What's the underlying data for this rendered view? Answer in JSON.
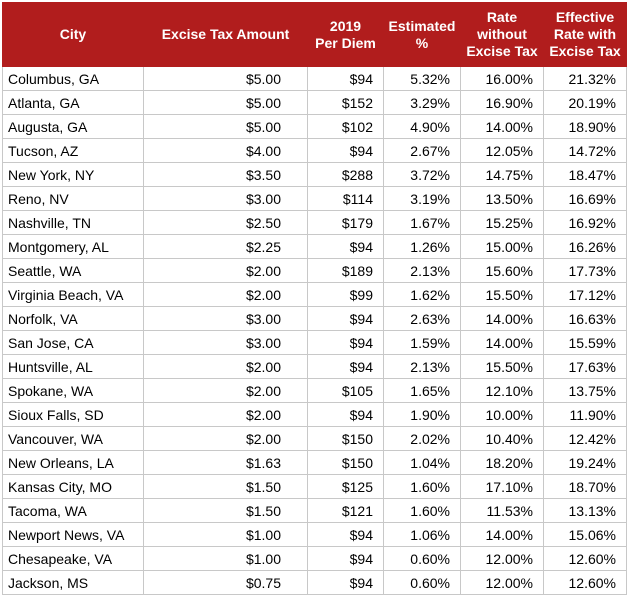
{
  "headers": [
    "City",
    "Excise Tax Amount",
    "2019\nPer Diem",
    "Estimated\n%",
    "Rate\nwithout\nExcise Tax",
    "Effective\nRate with\nExcise Tax"
  ],
  "rows": [
    [
      "Columbus, GA",
      "$5.00",
      "$94",
      "5.32%",
      "16.00%",
      "21.32%"
    ],
    [
      "Atlanta, GA",
      "$5.00",
      "$152",
      "3.29%",
      "16.90%",
      "20.19%"
    ],
    [
      "Augusta, GA",
      "$5.00",
      "$102",
      "4.90%",
      "14.00%",
      "18.90%"
    ],
    [
      "Tucson, AZ",
      "$4.00",
      "$94",
      "2.67%",
      "12.05%",
      "14.72%"
    ],
    [
      "New York, NY",
      "$3.50",
      "$288",
      "3.72%",
      "14.75%",
      "18.47%"
    ],
    [
      "Reno, NV",
      "$3.00",
      "$114",
      "3.19%",
      "13.50%",
      "16.69%"
    ],
    [
      "Nashville, TN",
      "$2.50",
      "$179",
      "1.67%",
      "15.25%",
      "16.92%"
    ],
    [
      "Montgomery, AL",
      "$2.25",
      "$94",
      "1.26%",
      "15.00%",
      "16.26%"
    ],
    [
      "Seattle, WA",
      "$2.00",
      "$189",
      "2.13%",
      "15.60%",
      "17.73%"
    ],
    [
      "Virginia Beach, VA",
      "$2.00",
      "$99",
      "1.62%",
      "15.50%",
      "17.12%"
    ],
    [
      "Norfolk, VA",
      "$3.00",
      "$94",
      "2.63%",
      "14.00%",
      "16.63%"
    ],
    [
      "San Jose, CA",
      "$3.00",
      "$94",
      "1.59%",
      "14.00%",
      "15.59%"
    ],
    [
      "Huntsville, AL",
      "$2.00",
      "$94",
      "2.13%",
      "15.50%",
      "17.63%"
    ],
    [
      "Spokane, WA",
      "$2.00",
      "$105",
      "1.65%",
      "12.10%",
      "13.75%"
    ],
    [
      "Sioux Falls, SD",
      "$2.00",
      "$94",
      "1.90%",
      "10.00%",
      "11.90%"
    ],
    [
      "Vancouver, WA",
      "$2.00",
      "$150",
      "2.02%",
      "10.40%",
      "12.42%"
    ],
    [
      "New Orleans, LA",
      "$1.63",
      "$150",
      "1.04%",
      "18.20%",
      "19.24%"
    ],
    [
      "Kansas City, MO",
      "$1.50",
      "$125",
      "1.60%",
      "17.10%",
      "18.70%"
    ],
    [
      "Tacoma, WA",
      "$1.50",
      "$121",
      "1.60%",
      "11.53%",
      "13.13%"
    ],
    [
      "Newport News, VA",
      "$1.00",
      "$94",
      "1.06%",
      "14.00%",
      "15.06%"
    ],
    [
      "Chesapeake, VA",
      "$1.00",
      "$94",
      "0.60%",
      "12.00%",
      "12.60%"
    ],
    [
      "Jackson, MS",
      "$0.75",
      "$94",
      "0.60%",
      "12.00%",
      "12.60%"
    ]
  ],
  "colors": {
    "header_bg": "#b11d1d",
    "header_text": "#ffffff",
    "grid": "#c8c8c8"
  }
}
